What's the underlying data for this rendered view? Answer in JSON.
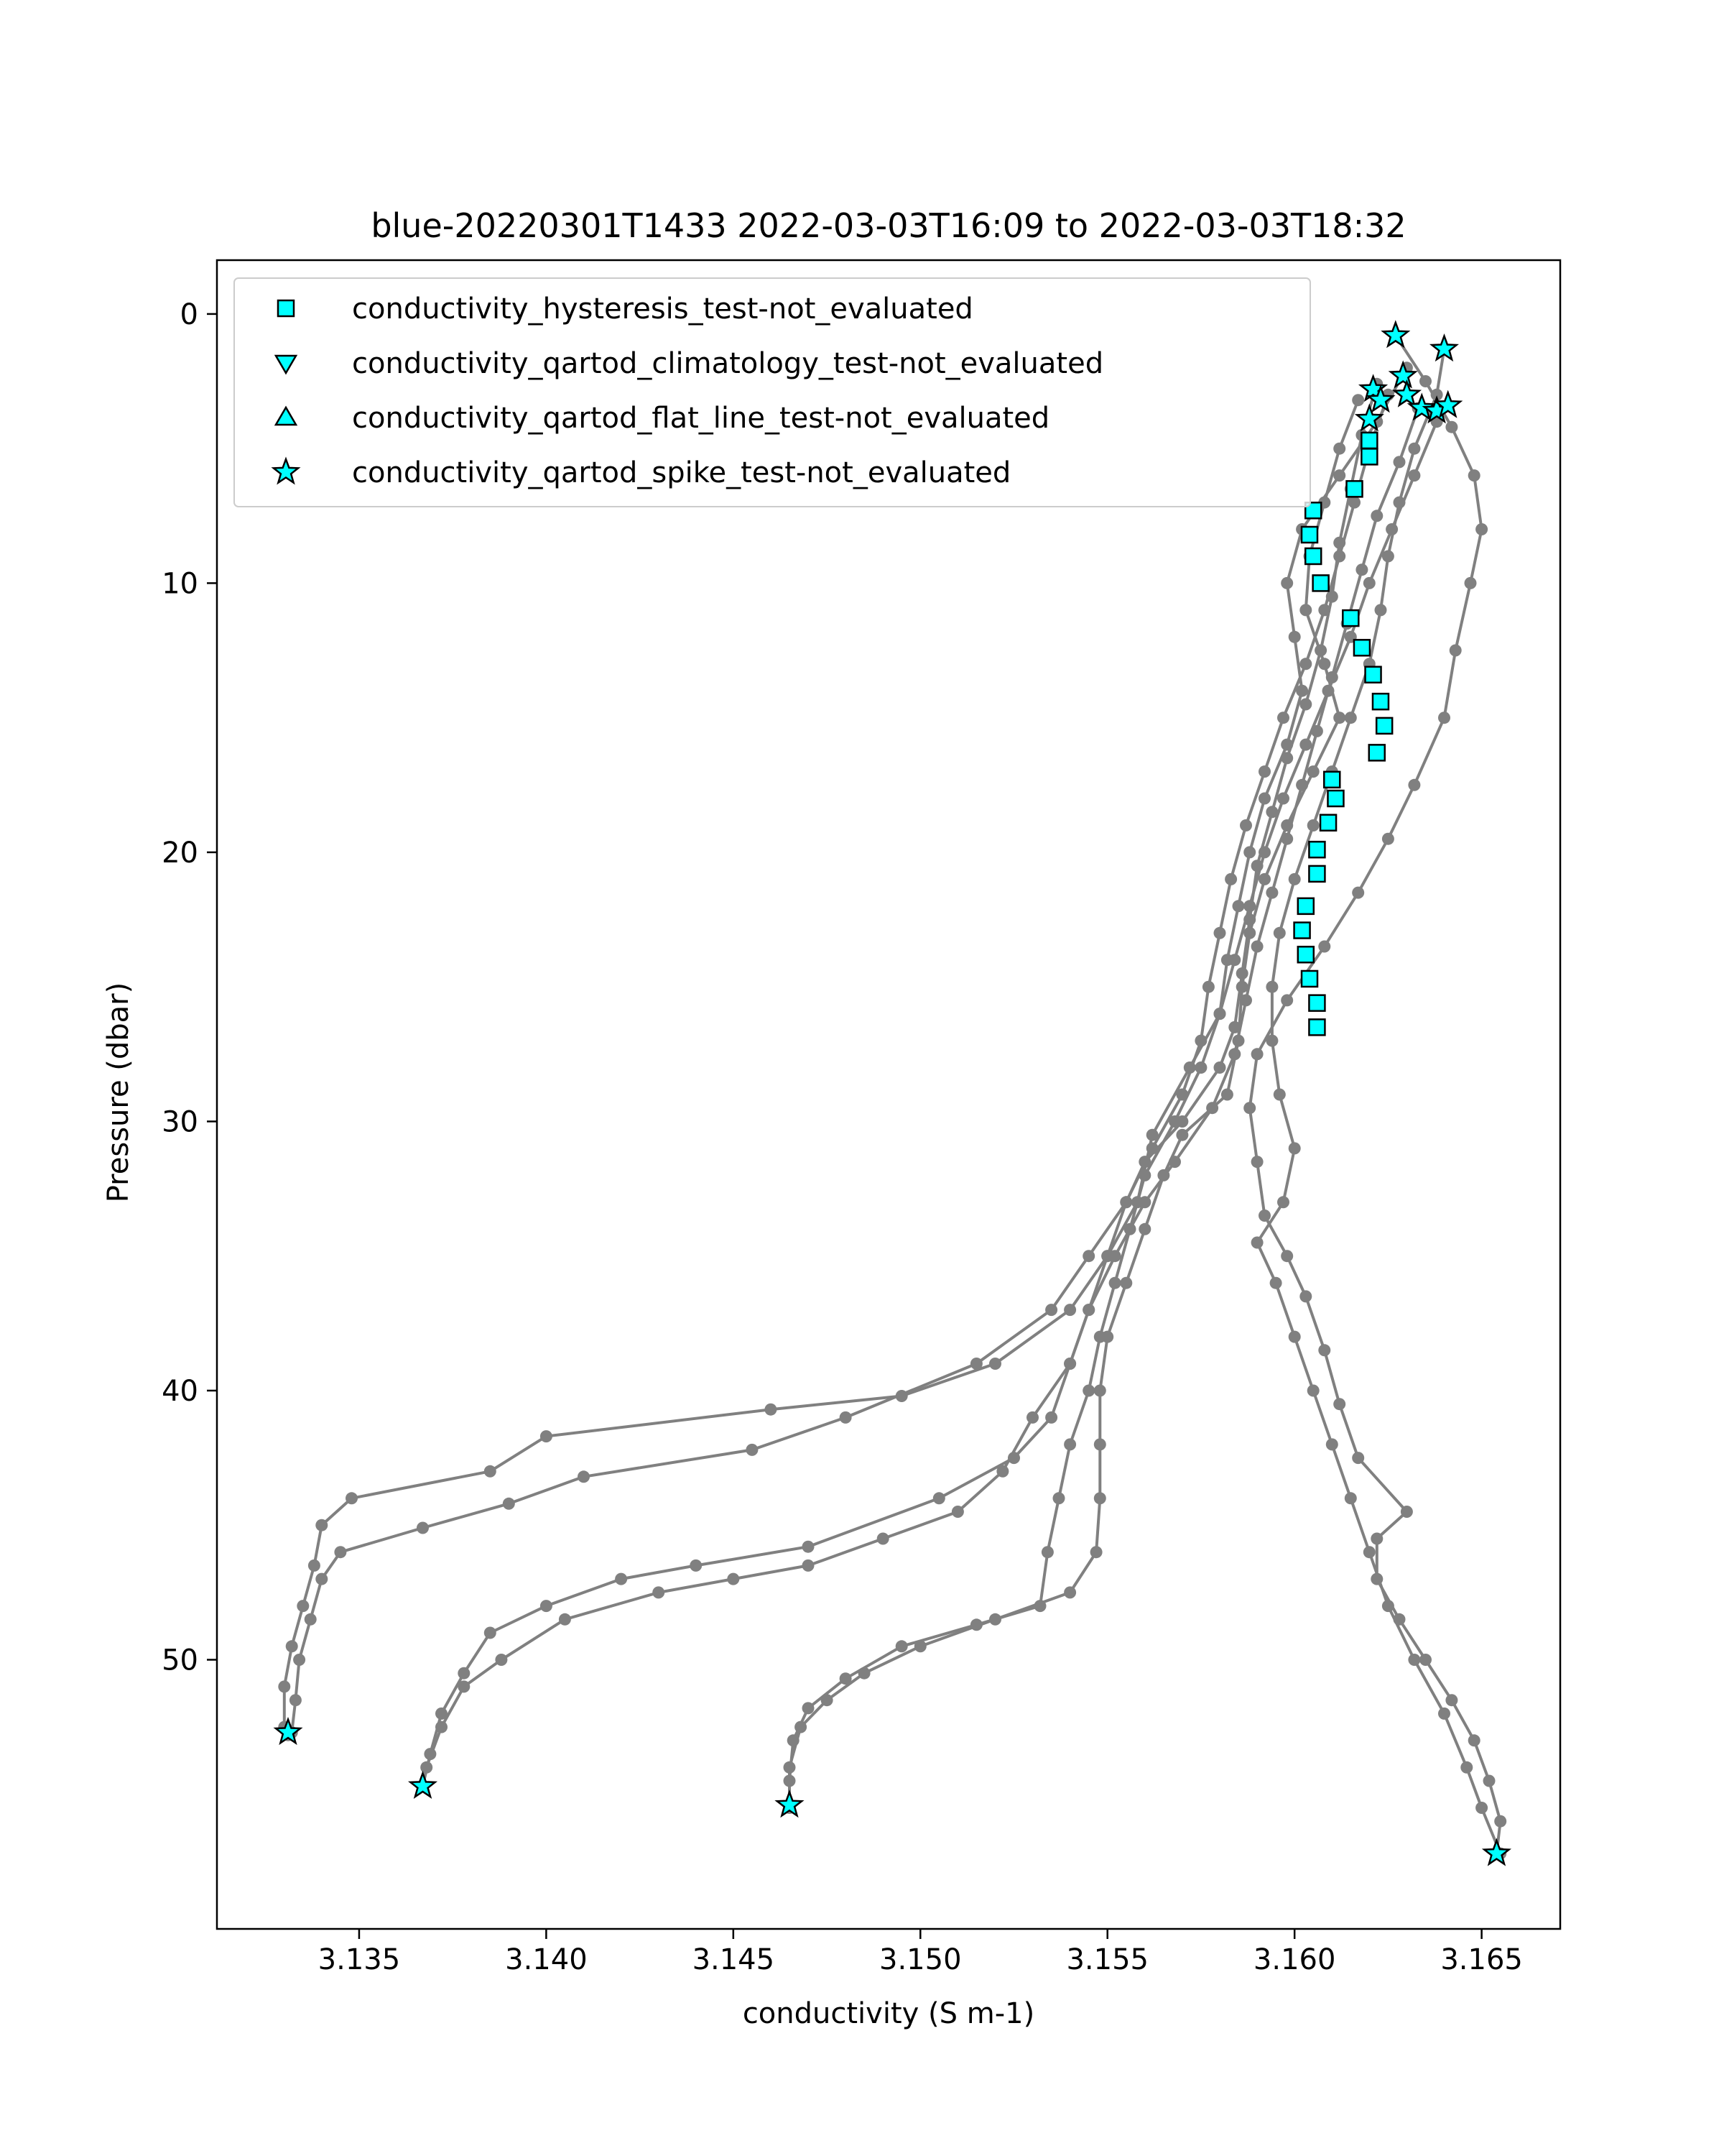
{
  "chart_data": {
    "type": "scatter",
    "title": "blue-20220301T1433 2022-03-03T16:09 to 2022-03-03T18:32",
    "xlabel": "conductivity (S m-1)",
    "ylabel": "Pressure (dbar)",
    "xlim": [
      3.1312,
      3.1671
    ],
    "ylim": [
      60,
      -2
    ],
    "y_inverted": true,
    "xticks": [
      3.135,
      3.14,
      3.145,
      3.15,
      3.155,
      3.16,
      3.165
    ],
    "xtick_labels": [
      "3.135",
      "3.140",
      "3.145",
      "3.150",
      "3.155",
      "3.160",
      "3.165"
    ],
    "yticks": [
      0,
      10,
      20,
      30,
      40,
      50
    ],
    "ytick_labels": [
      "0",
      "10",
      "20",
      "30",
      "40",
      "50"
    ],
    "grid": false,
    "legend_position": "top-left",
    "colors": {
      "profile_line": "#808080",
      "flag_marker": "#00ffff",
      "marker_edge": "#000000"
    },
    "profiles": [
      {
        "name": "",
        "points": [
          [
            3.1627,
            0.8
          ],
          [
            3.1635,
            2.5
          ],
          [
            3.1642,
            4.2
          ],
          [
            3.1648,
            6.0
          ],
          [
            3.165,
            8.0
          ],
          [
            3.1647,
            10.0
          ],
          [
            3.1643,
            12.5
          ],
          [
            3.164,
            15.0
          ],
          [
            3.1632,
            17.5
          ],
          [
            3.1625,
            19.5
          ],
          [
            3.1617,
            21.5
          ],
          [
            3.1608,
            23.5
          ],
          [
            3.1598,
            25.5
          ],
          [
            3.159,
            27.5
          ],
          [
            3.1588,
            29.5
          ],
          [
            3.159,
            31.5
          ],
          [
            3.1592,
            33.5
          ],
          [
            3.1598,
            35.0
          ],
          [
            3.1603,
            36.5
          ],
          [
            3.1608,
            38.5
          ],
          [
            3.1612,
            40.5
          ],
          [
            3.1617,
            42.5
          ],
          [
            3.163,
            44.5
          ],
          [
            3.1622,
            45.5
          ],
          [
            3.1622,
            47.0
          ],
          [
            3.1628,
            48.5
          ],
          [
            3.1635,
            50.0
          ],
          [
            3.1642,
            51.5
          ],
          [
            3.1648,
            53.0
          ],
          [
            3.1652,
            54.5
          ],
          [
            3.1655,
            56.0
          ],
          [
            3.1654,
            57.2
          ]
        ]
      },
      {
        "name": "",
        "points": [
          [
            3.164,
            1.3
          ],
          [
            3.1638,
            3.0
          ],
          [
            3.1632,
            5.0
          ],
          [
            3.1628,
            7.0
          ],
          [
            3.1625,
            9.0
          ],
          [
            3.1623,
            11.0
          ],
          [
            3.162,
            13.0
          ],
          [
            3.1615,
            15.0
          ],
          [
            3.161,
            17.0
          ],
          [
            3.1605,
            19.0
          ],
          [
            3.16,
            21.0
          ],
          [
            3.1596,
            23.0
          ],
          [
            3.1594,
            25.0
          ],
          [
            3.1594,
            27.0
          ],
          [
            3.1596,
            29.0
          ],
          [
            3.16,
            31.0
          ],
          [
            3.1597,
            33.0
          ],
          [
            3.159,
            34.5
          ],
          [
            3.1595,
            36.0
          ],
          [
            3.16,
            38.0
          ],
          [
            3.1605,
            40.0
          ],
          [
            3.161,
            42.0
          ],
          [
            3.1615,
            44.0
          ],
          [
            3.162,
            46.0
          ],
          [
            3.1625,
            48.0
          ],
          [
            3.1632,
            50.0
          ],
          [
            3.164,
            52.0
          ],
          [
            3.1646,
            54.0
          ],
          [
            3.165,
            55.5
          ],
          [
            3.1655,
            57.2
          ]
        ]
      },
      {
        "name": "",
        "points": [
          [
            3.1617,
            3.2
          ],
          [
            3.1612,
            5.0
          ],
          [
            3.1608,
            7.0
          ],
          [
            3.1604,
            9.0
          ],
          [
            3.1603,
            11.0
          ],
          [
            3.1608,
            13.0
          ],
          [
            3.1612,
            15.0
          ],
          [
            3.1605,
            17.0
          ],
          [
            3.1598,
            19.0
          ],
          [
            3.1592,
            21.0
          ],
          [
            3.1588,
            23.0
          ],
          [
            3.1586,
            25.0
          ],
          [
            3.1585,
            27.0
          ],
          [
            3.1582,
            29.0
          ],
          [
            3.157,
            30.5
          ],
          [
            3.1565,
            32.0
          ],
          [
            3.156,
            34.0
          ],
          [
            3.1555,
            36.0
          ],
          [
            3.155,
            38.0
          ],
          [
            3.1548,
            40.0
          ],
          [
            3.1548,
            42.0
          ],
          [
            3.1548,
            44.0
          ],
          [
            3.1547,
            46.0
          ],
          [
            3.154,
            47.5
          ],
          [
            3.152,
            48.5
          ],
          [
            3.15,
            49.5
          ],
          [
            3.1485,
            50.5
          ],
          [
            3.1475,
            51.5
          ],
          [
            3.1468,
            52.5
          ],
          [
            3.1465,
            54.0
          ],
          [
            3.1465,
            55.5
          ]
        ]
      },
      {
        "name": "",
        "points": [
          [
            3.1622,
            2.6
          ],
          [
            3.1618,
            4.5
          ],
          [
            3.1615,
            6.5
          ],
          [
            3.1612,
            8.5
          ],
          [
            3.161,
            10.5
          ],
          [
            3.1607,
            12.5
          ],
          [
            3.1603,
            14.5
          ],
          [
            3.1598,
            16.5
          ],
          [
            3.1594,
            18.5
          ],
          [
            3.159,
            20.5
          ],
          [
            3.1588,
            22.5
          ],
          [
            3.1586,
            24.5
          ],
          [
            3.1584,
            26.5
          ],
          [
            3.158,
            28.0
          ],
          [
            3.157,
            30.0
          ],
          [
            3.156,
            31.5
          ],
          [
            3.1555,
            33.0
          ],
          [
            3.155,
            35.0
          ],
          [
            3.1545,
            37.0
          ],
          [
            3.154,
            39.0
          ],
          [
            3.153,
            41.0
          ],
          [
            3.1522,
            43.0
          ],
          [
            3.151,
            44.5
          ],
          [
            3.149,
            45.5
          ],
          [
            3.147,
            46.5
          ],
          [
            3.145,
            47.0
          ],
          [
            3.143,
            47.5
          ],
          [
            3.1405,
            48.5
          ],
          [
            3.1388,
            50.0
          ],
          [
            3.1378,
            51.0
          ],
          [
            3.1372,
            52.5
          ],
          [
            3.1368,
            54.0
          ],
          [
            3.1367,
            54.7
          ]
        ]
      },
      {
        "name": "",
        "points": [
          [
            3.163,
            2.0
          ],
          [
            3.1622,
            4.0
          ],
          [
            3.1612,
            6.0
          ],
          [
            3.1602,
            8.0
          ],
          [
            3.1598,
            10.0
          ],
          [
            3.16,
            12.0
          ],
          [
            3.1602,
            14.0
          ],
          [
            3.1598,
            16.0
          ],
          [
            3.1592,
            18.0
          ],
          [
            3.1588,
            20.0
          ],
          [
            3.1585,
            22.0
          ],
          [
            3.1582,
            24.0
          ],
          [
            3.158,
            26.0
          ],
          [
            3.1572,
            28.0
          ],
          [
            3.1562,
            30.5
          ],
          [
            3.1558,
            33.0
          ],
          [
            3.155,
            35.0
          ],
          [
            3.154,
            37.0
          ],
          [
            3.152,
            39.0
          ],
          [
            3.1495,
            40.2
          ],
          [
            3.146,
            40.7
          ],
          [
            3.14,
            41.7
          ],
          [
            3.1385,
            43.0
          ],
          [
            3.1348,
            44.0
          ],
          [
            3.134,
            45.0
          ],
          [
            3.1338,
            46.5
          ],
          [
            3.1335,
            48.0
          ],
          [
            3.1332,
            49.5
          ],
          [
            3.133,
            51.0
          ],
          [
            3.133,
            52.5
          ],
          [
            3.1331,
            52.8
          ]
        ]
      },
      {
        "name": "",
        "points": [
          [
            3.1625,
            3.0
          ],
          [
            3.162,
            5.0
          ],
          [
            3.1616,
            7.0
          ],
          [
            3.1612,
            9.0
          ],
          [
            3.1608,
            11.0
          ],
          [
            3.1603,
            13.0
          ],
          [
            3.1597,
            15.0
          ],
          [
            3.1592,
            17.0
          ],
          [
            3.1587,
            19.0
          ],
          [
            3.1583,
            21.0
          ],
          [
            3.158,
            23.0
          ],
          [
            3.1577,
            25.0
          ],
          [
            3.1575,
            27.0
          ],
          [
            3.157,
            29.0
          ],
          [
            3.1562,
            31.0
          ],
          [
            3.1555,
            33.0
          ],
          [
            3.1545,
            35.0
          ],
          [
            3.1535,
            37.0
          ],
          [
            3.1515,
            39.0
          ],
          [
            3.148,
            41.0
          ],
          [
            3.1455,
            42.2
          ],
          [
            3.141,
            43.2
          ],
          [
            3.139,
            44.2
          ],
          [
            3.1367,
            45.1
          ],
          [
            3.1345,
            46.0
          ],
          [
            3.134,
            47.0
          ],
          [
            3.1337,
            48.5
          ],
          [
            3.1334,
            50.0
          ],
          [
            3.1333,
            51.5
          ],
          [
            3.1332,
            52.7
          ]
        ]
      },
      {
        "name": "",
        "points": [
          [
            3.1633,
            3.5
          ],
          [
            3.1628,
            5.5
          ],
          [
            3.1622,
            7.5
          ],
          [
            3.1618,
            9.5
          ],
          [
            3.1614,
            11.5
          ],
          [
            3.161,
            13.5
          ],
          [
            3.1606,
            15.5
          ],
          [
            3.1602,
            17.5
          ],
          [
            3.1598,
            19.5
          ],
          [
            3.1594,
            21.5
          ],
          [
            3.159,
            23.5
          ],
          [
            3.1587,
            25.5
          ],
          [
            3.1584,
            27.5
          ],
          [
            3.1578,
            29.5
          ],
          [
            3.1568,
            31.5
          ],
          [
            3.156,
            33.0
          ],
          [
            3.1552,
            35.0
          ],
          [
            3.1545,
            37.0
          ],
          [
            3.154,
            39.0
          ],
          [
            3.1535,
            41.0
          ],
          [
            3.1525,
            42.5
          ],
          [
            3.1505,
            44.0
          ],
          [
            3.147,
            45.8
          ],
          [
            3.144,
            46.5
          ],
          [
            3.142,
            47.0
          ],
          [
            3.14,
            48.0
          ],
          [
            3.1385,
            49.0
          ],
          [
            3.1378,
            50.5
          ],
          [
            3.1372,
            52.0
          ],
          [
            3.1369,
            53.5
          ],
          [
            3.1367,
            54.7
          ]
        ]
      },
      {
        "name": "",
        "points": [
          [
            3.1638,
            4.0
          ],
          [
            3.1632,
            6.0
          ],
          [
            3.1626,
            8.0
          ],
          [
            3.162,
            10.0
          ],
          [
            3.1615,
            12.0
          ],
          [
            3.1609,
            14.0
          ],
          [
            3.1603,
            16.0
          ],
          [
            3.1597,
            18.0
          ],
          [
            3.1592,
            20.0
          ],
          [
            3.1588,
            22.0
          ],
          [
            3.1584,
            24.0
          ],
          [
            3.158,
            26.0
          ],
          [
            3.1575,
            28.0
          ],
          [
            3.1568,
            30.0
          ],
          [
            3.156,
            32.0
          ],
          [
            3.1556,
            34.0
          ],
          [
            3.1552,
            36.0
          ],
          [
            3.1548,
            38.0
          ],
          [
            3.1545,
            40.0
          ],
          [
            3.154,
            42.0
          ],
          [
            3.1537,
            44.0
          ],
          [
            3.1534,
            46.0
          ],
          [
            3.1532,
            48.0
          ],
          [
            3.1515,
            48.7
          ],
          [
            3.1495,
            49.5
          ],
          [
            3.148,
            50.7
          ],
          [
            3.147,
            51.8
          ],
          [
            3.1466,
            53.0
          ],
          [
            3.1465,
            54.5
          ],
          [
            3.1465,
            55.4
          ]
        ]
      }
    ],
    "flags": {
      "hysteresis": [
        [
          3.162,
          4.7
        ],
        [
          3.162,
          5.3
        ],
        [
          3.1616,
          6.5
        ],
        [
          3.1605,
          7.3
        ],
        [
          3.1604,
          8.2
        ],
        [
          3.1605,
          9.0
        ],
        [
          3.1607,
          10.0
        ],
        [
          3.1615,
          11.3
        ],
        [
          3.1618,
          12.4
        ],
        [
          3.1621,
          13.4
        ],
        [
          3.1623,
          14.4
        ],
        [
          3.1624,
          15.3
        ],
        [
          3.1622,
          16.3
        ],
        [
          3.161,
          17.3
        ],
        [
          3.1611,
          18.0
        ],
        [
          3.1609,
          18.9
        ],
        [
          3.1606,
          19.9
        ],
        [
          3.1606,
          20.8
        ],
        [
          3.1603,
          22.0
        ],
        [
          3.1602,
          22.9
        ],
        [
          3.1603,
          23.8
        ],
        [
          3.1604,
          24.7
        ],
        [
          3.1606,
          25.6
        ],
        [
          3.1606,
          26.5
        ]
      ],
      "climatology": [],
      "flat_line": [],
      "spike": [
        [
          3.1627,
          0.8
        ],
        [
          3.164,
          1.3
        ],
        [
          3.1629,
          2.3
        ],
        [
          3.1621,
          2.8
        ],
        [
          3.163,
          3.0
        ],
        [
          3.1623,
          3.2
        ],
        [
          3.1634,
          3.5
        ],
        [
          3.1638,
          3.6
        ],
        [
          3.1641,
          3.4
        ],
        [
          3.162,
          3.9
        ],
        [
          3.1331,
          52.7
        ],
        [
          3.1367,
          54.7
        ],
        [
          3.1465,
          55.4
        ],
        [
          3.1654,
          57.2
        ]
      ]
    },
    "legend": [
      {
        "marker": "square",
        "label": "conductivity_hysteresis_test-not_evaluated"
      },
      {
        "marker": "triangle-down",
        "label": "conductivity_qartod_climatology_test-not_evaluated"
      },
      {
        "marker": "triangle-up",
        "label": "conductivity_qartod_flat_line_test-not_evaluated"
      },
      {
        "marker": "star",
        "label": "conductivity_qartod_spike_test-not_evaluated"
      }
    ]
  }
}
